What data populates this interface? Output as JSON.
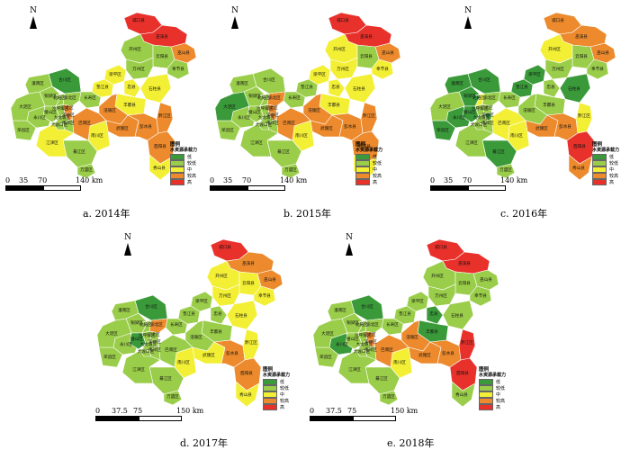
{
  "colors": {
    "low": "#3a9a3a",
    "lower": "#9acd4a",
    "mid": "#f3ef35",
    "higher": "#ec8a2d",
    "high": "#e8312b",
    "border": "#ffffff"
  },
  "legend": {
    "title": "图例",
    "subtitle": "水资源承载力",
    "items": [
      {
        "label": "低",
        "level": "low"
      },
      {
        "label": "较低",
        "level": "lower"
      },
      {
        "label": "中",
        "level": "mid"
      },
      {
        "label": "较高",
        "level": "higher"
      },
      {
        "label": "高",
        "level": "high"
      }
    ]
  },
  "north_label": "N",
  "counties": {
    "chengkou": "城口县",
    "wuxi": "巫溪县",
    "wushan": "巫山县",
    "kaizhou": "开州区",
    "yunyang": "云阳县",
    "fengjie": "奉节县",
    "wanzhou": "万州区",
    "liangping": "梁平区",
    "zhongxian": "忠县",
    "shizhu": "石柱县",
    "fengdu": "丰都县",
    "changshou": "长寿区",
    "dianjiang": "垫江县",
    "fuling": "涪陵区",
    "wulong": "武隆区",
    "pengshui": "彭水县",
    "qianjiang": "黔江区",
    "youyang": "酉阳县",
    "xiushan": "秀山县",
    "nanchuan": "南川区",
    "qijiang": "綦江区",
    "wansheng": "万盛区",
    "banan": "巴南区",
    "jiangjin": "江津区",
    "yongchuan": "永川区",
    "rongchang": "荣昌区",
    "tongliang": "铜梁区",
    "dazu": "大足区",
    "hechuan": "合川区",
    "tongnan": "潼南区",
    "bishan": "璧山区",
    "yubei": "渝北区",
    "beibei": "北碚区",
    "shapingba": "沙坪坝区",
    "jiulongpo": "九龙坡区",
    "dadukou": "大渡口区",
    "jiangbei": "江北区",
    "yuzhong": "渝中区",
    "nanan": "南岸区"
  },
  "maps": [
    {
      "caption": "a.  2014年",
      "scale_labels": [
        "0",
        "35",
        "70",
        "140 km"
      ],
      "levels": {
        "chengkou": "high",
        "wuxi": "high",
        "wushan": "higher",
        "kaizhou": "lower",
        "yunyang": "lower",
        "fengjie": "lower",
        "wanzhou": "lower",
        "liangping": "mid",
        "zhongxian": "mid",
        "shizhu": "mid",
        "fengdu": "mid",
        "changshou": "lower",
        "dianjiang": "mid",
        "fuling": "higher",
        "wulong": "higher",
        "pengshui": "higher",
        "qianjiang": "higher",
        "youyang": "higher",
        "xiushan": "mid",
        "nanchuan": "mid",
        "qijiang": "lower",
        "wansheng": "lower",
        "banan": "higher",
        "jiangjin": "mid",
        "yongchuan": "lower",
        "rongchang": "lower",
        "tongliang": "lower",
        "dazu": "lower",
        "hechuan": "low",
        "tongnan": "lower",
        "bishan": "lower",
        "yubei": "lower",
        "beibei": "lower",
        "shapingba": "lower",
        "jiulongpo": "lower",
        "dadukou": "lower",
        "jiangbei": "higher",
        "yuzhong": "higher",
        "nanan": "lower"
      }
    },
    {
      "caption": "b.  2015年",
      "scale_labels": [
        "0",
        "35",
        "70",
        "140 km"
      ],
      "levels": {
        "chengkou": "high",
        "wuxi": "high",
        "wushan": "higher",
        "kaizhou": "mid",
        "yunyang": "lower",
        "fengjie": "mid",
        "wanzhou": "mid",
        "liangping": "mid",
        "zhongxian": "mid",
        "shizhu": "mid",
        "fengdu": "mid",
        "changshou": "lower",
        "dianjiang": "lower",
        "fuling": "higher",
        "wulong": "higher",
        "pengshui": "higher",
        "qianjiang": "higher",
        "youyang": "higher",
        "xiushan": "mid",
        "nanchuan": "mid",
        "qijiang": "lower",
        "wansheng": "lower",
        "banan": "higher",
        "jiangjin": "lower",
        "yongchuan": "lower",
        "rongchang": "lower",
        "tongliang": "lower",
        "dazu": "low",
        "hechuan": "lower",
        "tongnan": "lower",
        "bishan": "lower",
        "yubei": "higher",
        "beibei": "lower",
        "shapingba": "lower",
        "jiulongpo": "lower",
        "dadukou": "lower",
        "jiangbei": "higher",
        "yuzhong": "higher",
        "nanan": "lower"
      }
    },
    {
      "caption": "c.  2016年",
      "scale_labels": [
        "0",
        "35",
        "70",
        "140 km"
      ],
      "levels": {
        "chengkou": "higher",
        "wuxi": "higher",
        "wushan": "higher",
        "kaizhou": "mid",
        "yunyang": "lower",
        "fengjie": "lower",
        "wanzhou": "lower",
        "liangping": "low",
        "zhongxian": "lower",
        "shizhu": "low",
        "fengdu": "lower",
        "changshou": "lower",
        "dianjiang": "low",
        "fuling": "lower",
        "wulong": "higher",
        "pengshui": "higher",
        "qianjiang": "mid",
        "youyang": "high",
        "xiushan": "higher",
        "nanchuan": "mid",
        "qijiang": "low",
        "wansheng": "lower",
        "banan": "mid",
        "jiangjin": "lower",
        "yongchuan": "low",
        "rongchang": "low",
        "tongliang": "low",
        "dazu": "lower",
        "hechuan": "low",
        "tongnan": "low",
        "bishan": "low",
        "yubei": "lower",
        "beibei": "mid",
        "shapingba": "lower",
        "jiulongpo": "lower",
        "dadukou": "lower",
        "jiangbei": "lower",
        "yuzhong": "low",
        "nanan": "lower"
      }
    },
    {
      "caption": "d.  2017年",
      "scale_labels": [
        "0",
        "37.5",
        "75",
        "150 km"
      ],
      "levels": {
        "chengkou": "high",
        "wuxi": "higher",
        "wushan": "higher",
        "kaizhou": "mid",
        "yunyang": "mid",
        "fengjie": "mid",
        "wanzhou": "mid",
        "liangping": "lower",
        "zhongxian": "lower",
        "shizhu": "mid",
        "fengdu": "lower",
        "changshou": "lower",
        "dianjiang": "lower",
        "fuling": "lower",
        "wulong": "mid",
        "pengshui": "higher",
        "qianjiang": "mid",
        "youyang": "higher",
        "xiushan": "mid",
        "nanchuan": "mid",
        "qijiang": "lower",
        "wansheng": "lower",
        "banan": "lower",
        "jiangjin": "lower",
        "yongchuan": "lower",
        "rongchang": "lower",
        "tongliang": "lower",
        "dazu": "lower",
        "hechuan": "low",
        "tongnan": "lower",
        "bishan": "low",
        "yubei": "higher",
        "beibei": "lower",
        "shapingba": "lower",
        "jiulongpo": "lower",
        "dadukou": "lower",
        "jiangbei": "lower",
        "yuzhong": "lower",
        "nanan": "lower"
      }
    },
    {
      "caption": "e.  2018年",
      "scale_labels": [
        "0",
        "37.5",
        "75",
        "150 km"
      ],
      "levels": {
        "chengkou": "high",
        "wuxi": "high",
        "wushan": "lower",
        "kaizhou": "lower",
        "yunyang": "lower",
        "fengjie": "lower",
        "wanzhou": "lower",
        "liangping": "lower",
        "zhongxian": "low",
        "shizhu": "lower",
        "fengdu": "low",
        "changshou": "lower",
        "dianjiang": "lower",
        "fuling": "higher",
        "wulong": "higher",
        "pengshui": "higher",
        "qianjiang": "high",
        "youyang": "high",
        "xiushan": "lower",
        "nanchuan": "mid",
        "qijiang": "lower",
        "wansheng": "lower",
        "banan": "higher",
        "jiangjin": "lower",
        "yongchuan": "low",
        "rongchang": "lower",
        "tongliang": "lower",
        "dazu": "lower",
        "hechuan": "low",
        "tongnan": "lower",
        "bishan": "lower",
        "yubei": "lower",
        "beibei": "lower",
        "shapingba": "lower",
        "jiulongpo": "lower",
        "dadukou": "lower",
        "jiangbei": "higher",
        "yuzhong": "higher",
        "nanan": "lower"
      }
    }
  ]
}
